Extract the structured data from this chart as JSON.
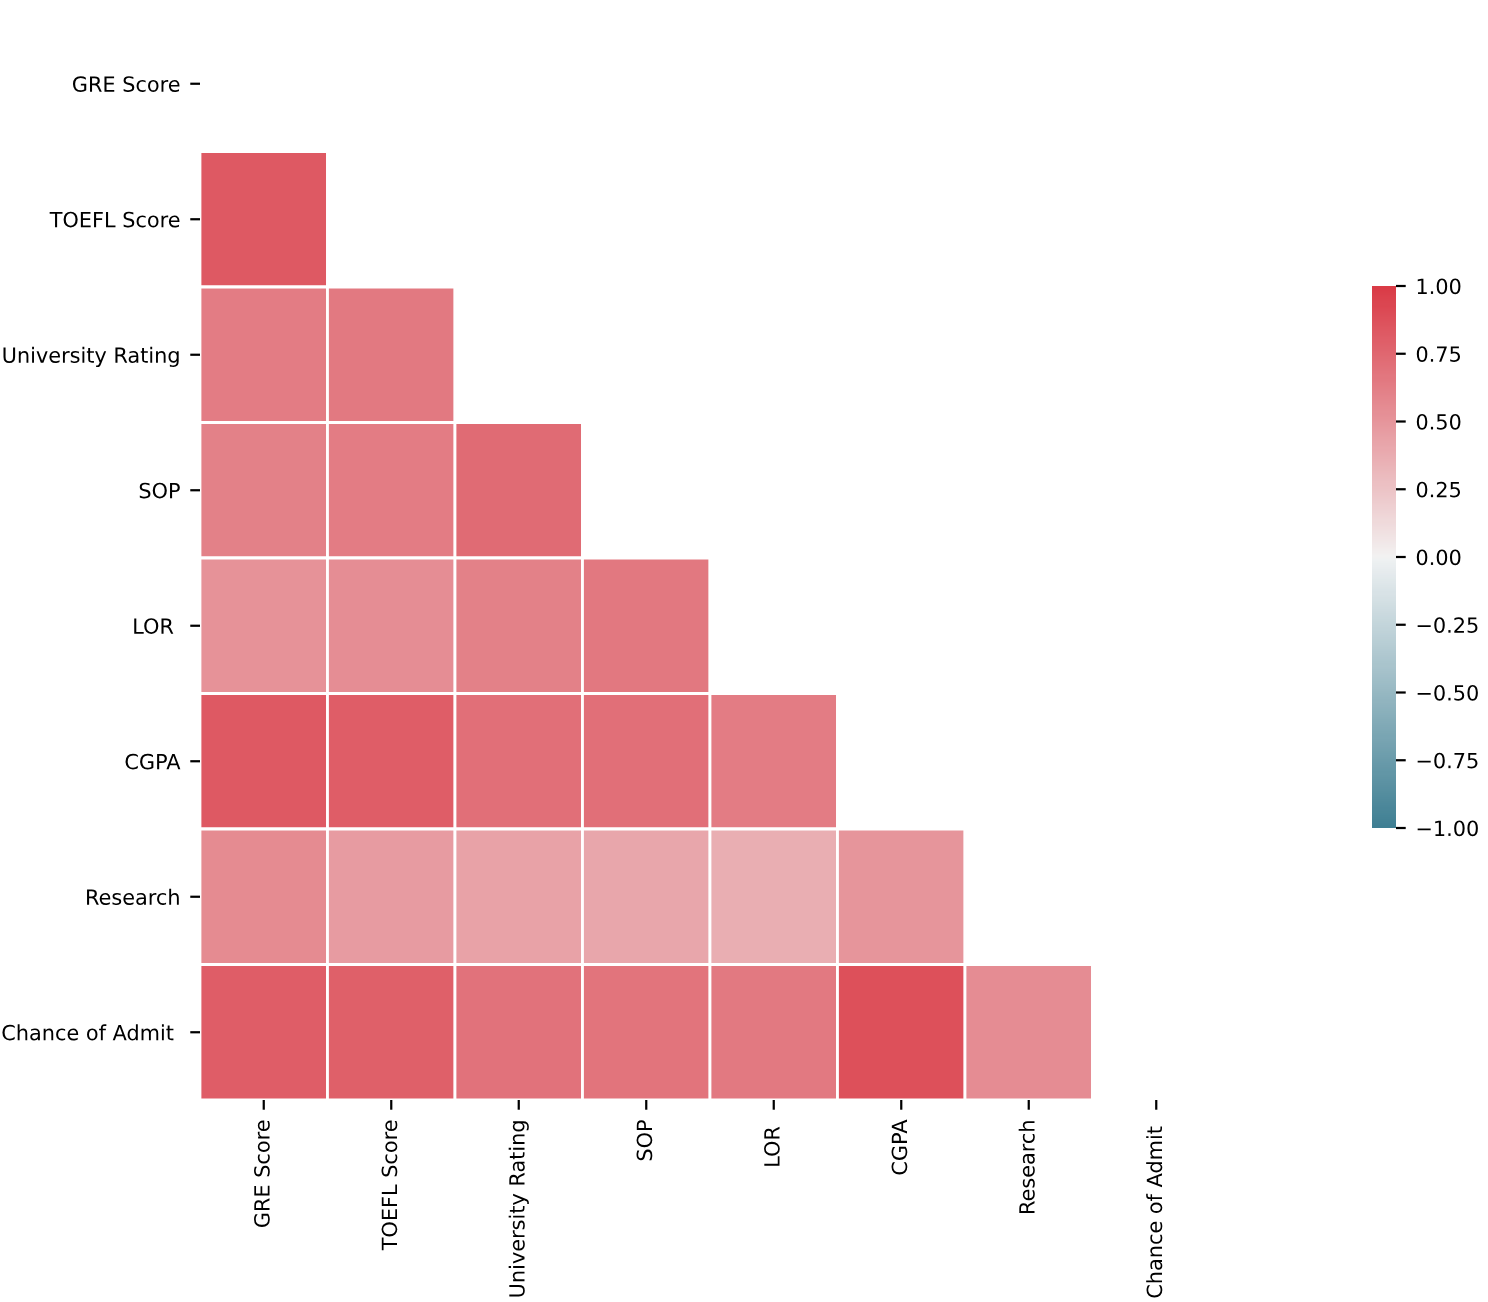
{
  "chart_data": {
    "type": "heatmap",
    "categories": [
      "GRE Score",
      "TOEFL Score",
      "University Rating",
      "SOP",
      "LOR ",
      "CGPA",
      "Research",
      "Chance of Admit "
    ],
    "y_categories": [
      "GRE Score",
      "TOEFL Score",
      "University Rating",
      "SOP",
      "LOR ",
      "CGPA",
      "Research",
      "Chance of Admit "
    ],
    "cells": [
      [
        null,
        null,
        null,
        null,
        null,
        null,
        null,
        null
      ],
      [
        0.83,
        null,
        null,
        null,
        null,
        null,
        null,
        null
      ],
      [
        0.64,
        0.65,
        null,
        null,
        null,
        null,
        null,
        null
      ],
      [
        0.61,
        0.64,
        0.73,
        null,
        null,
        null,
        null,
        null
      ],
      [
        0.52,
        0.54,
        0.61,
        0.66,
        null,
        null,
        null,
        null
      ],
      [
        0.83,
        0.81,
        0.71,
        0.71,
        0.64,
        null,
        null,
        null
      ],
      [
        0.56,
        0.47,
        0.43,
        0.41,
        0.37,
        0.5,
        null,
        null
      ],
      [
        0.81,
        0.79,
        0.69,
        0.68,
        0.65,
        0.88,
        0.55,
        null
      ]
    ],
    "clim": [
      -1,
      1
    ],
    "cticks": [
      {
        "value": -1,
        "label": "−1.00"
      },
      {
        "value": -0.75,
        "label": "−0.75"
      },
      {
        "value": -0.5,
        "label": "−0.50"
      },
      {
        "value": -0.25,
        "label": "−0.25"
      },
      {
        "value": 0,
        "label": "0.00"
      },
      {
        "value": 0.25,
        "label": "0.25"
      },
      {
        "value": 0.5,
        "label": "0.50"
      },
      {
        "value": 0.75,
        "label": "0.75"
      },
      {
        "value": 1,
        "label": "1.00"
      }
    ]
  }
}
